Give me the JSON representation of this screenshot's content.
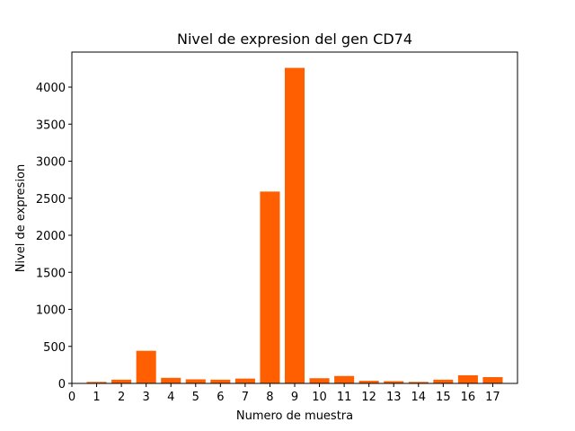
{
  "chart_data": {
    "type": "bar",
    "title": "Nivel de expresion del gen CD74",
    "xlabel": "Numero de muestra",
    "ylabel": "Nivel de expresion",
    "categories": [
      "1",
      "2",
      "3",
      "4",
      "5",
      "6",
      "7",
      "8",
      "9",
      "10",
      "11",
      "12",
      "13",
      "14",
      "15",
      "16",
      "17"
    ],
    "x": [
      1,
      2,
      3,
      4,
      5,
      6,
      7,
      8,
      9,
      10,
      11,
      12,
      13,
      14,
      15,
      16,
      17
    ],
    "values": [
      20,
      50,
      440,
      75,
      55,
      50,
      65,
      2590,
      4260,
      70,
      100,
      35,
      30,
      20,
      50,
      110,
      85
    ],
    "xlim": [
      0,
      18
    ],
    "ylim": [
      0,
      4473
    ],
    "x_ticks": [
      0,
      1,
      2,
      3,
      4,
      5,
      6,
      7,
      8,
      9,
      10,
      11,
      12,
      13,
      14,
      15,
      16,
      17
    ],
    "y_ticks": [
      0,
      500,
      1000,
      1500,
      2000,
      2500,
      3000,
      3500,
      4000
    ],
    "bar_color": "#ff5f00",
    "grid": false,
    "legend": "none"
  }
}
